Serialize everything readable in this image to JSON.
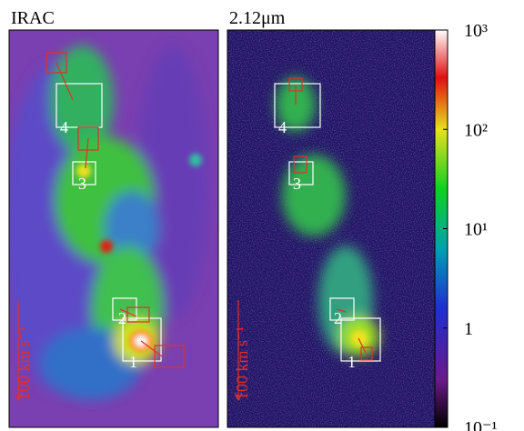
{
  "panels": [
    {
      "title": "IRAC",
      "regions": [
        "1",
        "2",
        "3",
        "4"
      ],
      "velocity_label": "100 km s⁻¹"
    },
    {
      "title": "2.12μm",
      "regions": [
        "1",
        "2",
        "3",
        "4"
      ],
      "velocity_label": "100 km s⁻¹"
    }
  ],
  "colorbar": {
    "scale": "log",
    "lim": [
      0.1,
      1000
    ],
    "ticks": [
      {
        "value": 1000,
        "label": "10³"
      },
      {
        "value": 100,
        "label": "10²"
      },
      {
        "value": 10,
        "label": "10¹"
      },
      1,
      {
        "value": 0.1,
        "label": "10⁻¹"
      }
    ]
  }
}
